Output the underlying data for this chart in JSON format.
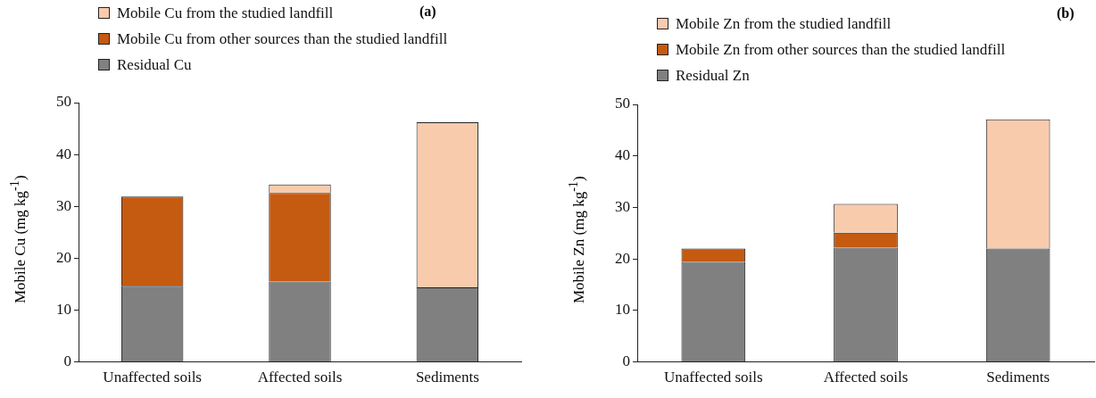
{
  "chart_data": [
    {
      "type": "bar",
      "title": "(a)",
      "ylabel": "Mobile Cu (mg kg$^{-1}$)",
      "categories": [
        "Unaffected soils",
        "Affected soils",
        "Sediments"
      ],
      "stacked": true,
      "legend": "top left",
      "grid": false,
      "ylim": [
        0,
        50
      ],
      "yticks": [
        0,
        10,
        20,
        30,
        40,
        50
      ],
      "series": [
        {
          "name": "Residual Cu",
          "color": "#808080",
          "values": [
            14.7,
            15.5,
            14.4
          ]
        },
        {
          "name": "Mobile Cu from other sources than the studied landfill",
          "color": "#c55a11",
          "values": [
            17.2,
            17.1,
            null
          ]
        },
        {
          "name": "Mobile Cu from the studied landfill",
          "color": "#f8cbad",
          "values": [
            null,
            1.6,
            31.8
          ]
        }
      ]
    },
    {
      "type": "bar",
      "title": "(b)",
      "ylabel": "Mobile Zn (mg kg$^{-1}$)",
      "categories": [
        "Unaffected soils",
        "Affected soils",
        "Sediments"
      ],
      "stacked": true,
      "legend": "top left",
      "grid": false,
      "ylim": [
        0,
        50
      ],
      "yticks": [
        0,
        10,
        20,
        30,
        40,
        50
      ],
      "series": [
        {
          "name": "Residual Zn",
          "color": "#808080",
          "values": [
            19.4,
            22.2,
            22.0
          ]
        },
        {
          "name": "Mobile Zn from other sources than the studied landfill",
          "color": "#c55a11",
          "values": [
            2.6,
            2.9,
            null
          ]
        },
        {
          "name": "Mobile Zn from the studied landfill",
          "color": "#f8cbad",
          "values": [
            null,
            5.6,
            25.1
          ]
        }
      ]
    }
  ]
}
